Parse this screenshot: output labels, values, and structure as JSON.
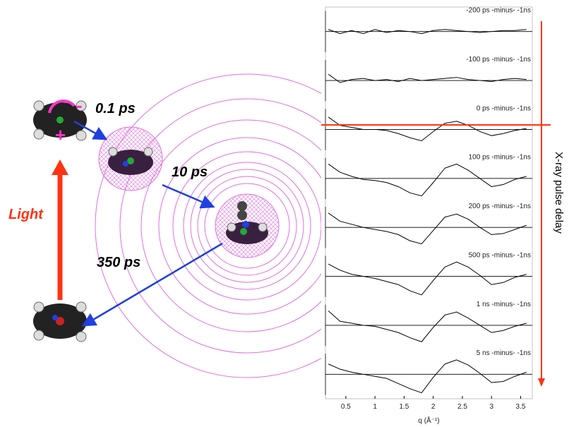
{
  "diagram": {
    "steps": [
      "0.1 ps",
      "10 ps",
      "350 ps"
    ],
    "excitation": "Light",
    "delay_label": "X-ray pulse delay"
  },
  "plot": {
    "xlabel": "q (Å⁻¹)",
    "xlim": [
      0.15,
      3.7
    ],
    "xticks": [
      0.5,
      1.0,
      1.5,
      2.0,
      2.5,
      3.0,
      3.5
    ],
    "ylim": [
      -1,
      1
    ],
    "x": [
      0.2,
      0.4,
      0.6,
      0.8,
      1.0,
      1.2,
      1.4,
      1.6,
      1.8,
      2.0,
      2.2,
      2.4,
      2.6,
      2.8,
      3.0,
      3.2,
      3.4,
      3.6
    ],
    "panels": [
      {
        "label": "-200 ps -minus-  -1ns",
        "values": [
          0.1,
          -0.1,
          0.05,
          -0.1,
          0.1,
          -0.05,
          0.05,
          0,
          -0.1,
          0.05,
          0.1,
          0.05,
          0,
          -0.05,
          0,
          0.05,
          0.05,
          0.1
        ]
      },
      {
        "label": "-100 ps  -minus-  -1ns",
        "values": [
          0.3,
          -0.1,
          0.05,
          0.1,
          0,
          0.05,
          -0.05,
          0.1,
          0,
          0.05,
          0.1,
          0.15,
          0.05,
          0,
          -0.05,
          0.05,
          0.1,
          0.05
        ]
      },
      {
        "label": "0 ps  -minus-  -1ns",
        "values": [
          0.6,
          0.2,
          0.1,
          0,
          0,
          -0.05,
          -0.2,
          -0.4,
          -0.55,
          -0.1,
          0.3,
          0.4,
          0.2,
          -0.1,
          -0.3,
          -0.2,
          -0.05,
          0.05
        ]
      },
      {
        "label": "100 ps  -minus-  -1ns",
        "values": [
          0.7,
          0.3,
          0.1,
          -0.05,
          -0.1,
          -0.2,
          -0.4,
          -0.7,
          -0.85,
          -0.2,
          0.5,
          0.7,
          0.4,
          0,
          -0.4,
          -0.3,
          -0.05,
          0.1
        ]
      },
      {
        "label": "200 ps  -minus-  -1ns",
        "values": [
          0.7,
          0.3,
          0.15,
          0,
          -0.1,
          -0.2,
          -0.35,
          -0.65,
          -0.8,
          -0.15,
          0.5,
          0.65,
          0.4,
          0,
          -0.35,
          -0.3,
          -0.1,
          0.1
        ]
      },
      {
        "label": "500 ps  -minus-  -1ns",
        "values": [
          0.6,
          0.3,
          0.1,
          0,
          -0.1,
          -0.25,
          -0.4,
          -0.7,
          -0.9,
          -0.2,
          0.45,
          0.7,
          0.45,
          0.05,
          -0.4,
          -0.3,
          -0.05,
          0.1
        ]
      },
      {
        "label": "1 ns  -minus-  -1ns",
        "values": [
          0.7,
          0.2,
          0.1,
          0,
          -0.05,
          -0.2,
          -0.35,
          -0.6,
          -0.8,
          -0.1,
          0.5,
          0.65,
          0.35,
          0,
          -0.35,
          -0.25,
          -0.05,
          0.1
        ]
      },
      {
        "label": "5 ns  -minus-  -1ns",
        "values": [
          0.5,
          0.25,
          0.1,
          0,
          -0.1,
          -0.2,
          -0.45,
          -0.7,
          -0.9,
          -0.15,
          0.5,
          0.7,
          0.45,
          0.05,
          -0.4,
          -0.35,
          -0.1,
          0.1
        ]
      }
    ]
  }
}
